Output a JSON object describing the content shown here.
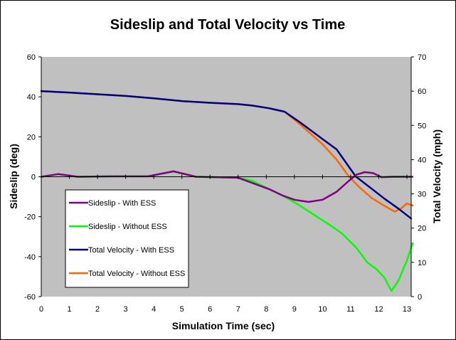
{
  "chart_data": {
    "type": "line",
    "title": "Sideslip and Total Velocity vs Time",
    "xlabel": "Simulation Time (sec)",
    "ylabel": "Sideslip (deg)",
    "y2label": "Total Velocity (mph)",
    "xlim": [
      0,
      13.2
    ],
    "ylim": [
      -60,
      60
    ],
    "y2lim": [
      0,
      70
    ],
    "xticks": [
      0,
      1,
      2,
      3,
      4,
      5,
      6,
      7,
      8,
      9,
      10,
      11,
      12,
      13
    ],
    "yticks": [
      -60,
      -40,
      -20,
      0,
      20,
      40,
      60
    ],
    "y2ticks": [
      0,
      10,
      20,
      30,
      40,
      50,
      60,
      70
    ],
    "grid": false,
    "plot_background": "#C0C0C0",
    "legend_position": "bottom-left-inside",
    "series": [
      {
        "name": "Sideslip - With ESS",
        "axis": "left",
        "color": "#800080",
        "x": [
          0,
          0.6,
          1.3,
          2.5,
          3.8,
          4.7,
          5.5,
          7.0,
          8.1,
          8.6,
          9.0,
          9.5,
          10.0,
          10.5,
          10.9,
          11.2,
          11.5,
          11.8,
          12.1,
          12.5,
          13.0,
          13.2
        ],
        "y": [
          0,
          1.3,
          0,
          0.2,
          0.2,
          2.7,
          0,
          -0.5,
          -6.2,
          -9.5,
          -11.5,
          -12.6,
          -11.5,
          -7.5,
          -2.5,
          1.0,
          2.3,
          1.8,
          -0.2,
          0,
          0,
          0
        ]
      },
      {
        "name": "Sideslip - Without ESS",
        "axis": "left",
        "color": "#00FF00",
        "x": [
          0,
          0.6,
          1.3,
          2.5,
          3.8,
          4.7,
          5.5,
          7.0,
          7.5,
          8.1,
          8.6,
          9.2,
          9.8,
          10.3,
          10.7,
          11.2,
          11.6,
          11.9,
          12.2,
          12.45,
          12.7,
          13.0,
          13.2
        ],
        "y": [
          0,
          1.3,
          0,
          0.2,
          0.2,
          2.7,
          0,
          -0.5,
          -2.0,
          -6.2,
          -9.5,
          -14.5,
          -20.0,
          -24.5,
          -28.5,
          -35.5,
          -43.0,
          -46.0,
          -50.5,
          -57.2,
          -52.0,
          -42.0,
          -33.3
        ]
      },
      {
        "name": "Total Velocity - With ESS",
        "axis": "right",
        "color": "#000080",
        "x": [
          0,
          1,
          2,
          3,
          4,
          5,
          6,
          7,
          7.5,
          8.1,
          8.65,
          9.2,
          10.0,
          10.5,
          11.18,
          11.7,
          12.2,
          12.7,
          13.15
        ],
        "y": [
          60.0,
          59.6,
          59.1,
          58.6,
          57.9,
          57.1,
          56.6,
          56.2,
          55.8,
          55.0,
          54.0,
          50.9,
          46.0,
          43.0,
          35.1,
          31.8,
          28.6,
          25.7,
          22.8
        ]
      },
      {
        "name": "Total Velocity - Without ESS",
        "axis": "right",
        "color": "#FF6600",
        "x": [
          0,
          1,
          2,
          3,
          4,
          5,
          6,
          7,
          7.5,
          8.1,
          8.65,
          9.2,
          10.0,
          10.5,
          10.93,
          11.3,
          11.73,
          12.2,
          12.57,
          12.8,
          13.0,
          13.2
        ],
        "y": [
          60.0,
          59.6,
          59.1,
          58.6,
          57.9,
          57.1,
          56.6,
          56.2,
          55.8,
          55.0,
          54.0,
          50.3,
          44.5,
          40.0,
          35.1,
          32.0,
          28.9,
          26.5,
          24.8,
          25.8,
          27.2,
          26.6
        ]
      }
    ]
  }
}
